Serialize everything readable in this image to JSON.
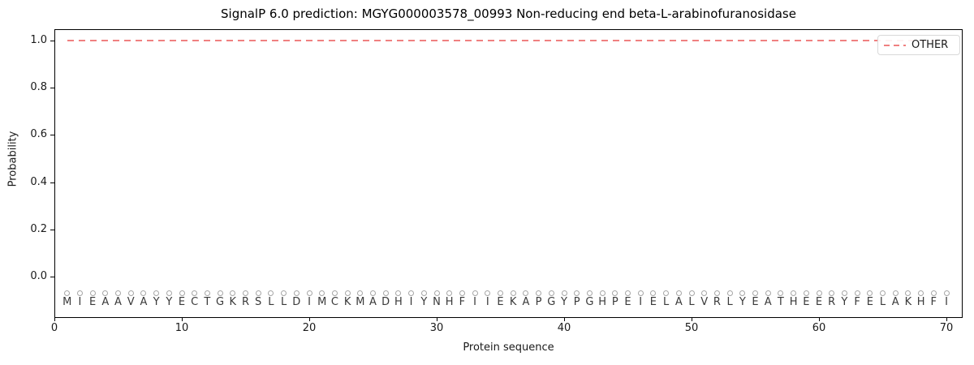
{
  "title": "SignalP 6.0 prediction: MGYG000003578_00993 Non-reducing end beta-L-arabinofuranosidase",
  "axes": {
    "xlabel": "Protein sequence",
    "ylabel": "Probability"
  },
  "legend": {
    "label": "OTHER",
    "line_color": "#f08080",
    "line_style": "dashed",
    "position": "upper right"
  },
  "colors": {
    "other_line": "#f08080",
    "gridline": "#f0f0f0",
    "marker_outline": "#a6a6a6",
    "sequence_letter": "#3a3a3a",
    "spine": "#000000"
  },
  "chart_data": {
    "type": "line",
    "title": "SignalP 6.0 prediction: MGYG000003578_00993 Non-reducing end beta-L-arabinofuranosidase",
    "xlabel": "Protein sequence",
    "ylabel": "Probability",
    "x_ticks": [
      0,
      10,
      20,
      30,
      40,
      50,
      60,
      70
    ],
    "y_ticks": [
      0.0,
      0.2,
      0.4,
      0.6,
      0.8,
      1.0
    ],
    "xlim": [
      0,
      71.3
    ],
    "ylim": [
      -0.175,
      1.05
    ],
    "grid": "vertical gridline at every residue position",
    "legend_position": "upper right",
    "series": [
      {
        "name": "OTHER",
        "color": "#f08080",
        "linestyle": "dashed",
        "x_range": [
          1,
          70
        ],
        "y_value": 1.0,
        "description": "constant probability 1.0 across all 70 residues"
      }
    ],
    "sequence": "MIEAAVAYYECTGKRSLLDIMCKMADHIYNHFIIEKAPGYPGHPEIELALVRLYEATHEERYFELAKHFI",
    "sequence_length": 70,
    "sequence_marker": {
      "shape": "open-circle",
      "color": "#a6a6a6",
      "y": -0.07
    }
  }
}
